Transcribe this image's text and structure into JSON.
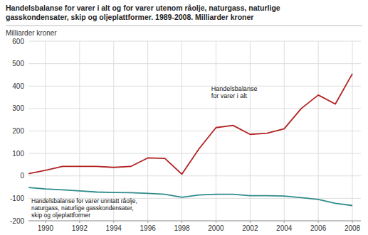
{
  "chart_data": {
    "type": "line",
    "title": "Handelsbalanse for varer i alt og for varer utenom råolje, naturgass, naturlige\ngasskondensater, skip og oljeplattformer. 1989-2008. Milliarder kroner",
    "ylabel": "Milliarder kroner",
    "x": [
      1989,
      1990,
      1991,
      1992,
      1993,
      1994,
      1995,
      1996,
      1997,
      1998,
      1999,
      2000,
      2001,
      2002,
      2003,
      2004,
      2005,
      2006,
      2007,
      2008
    ],
    "series": [
      {
        "name": "Handelsbalanse\nfor varer i alt",
        "color": "#b22222",
        "values": [
          10,
          25,
          42,
          42,
          42,
          38,
          42,
          80,
          78,
          8,
          120,
          215,
          225,
          185,
          190,
          210,
          300,
          360,
          320,
          455
        ]
      },
      {
        "name": "Handelsbalanse for varer unntatt råolje,\nnaturgass, naturlige gasskondensater,\nskip og oljeplattformer",
        "color": "#2e8b8b",
        "values": [
          -52,
          -58,
          -62,
          -67,
          -72,
          -74,
          -75,
          -78,
          -82,
          -95,
          -85,
          -82,
          -82,
          -88,
          -88,
          -90,
          -97,
          -105,
          -122,
          -132
        ]
      }
    ],
    "xlim": [
      1989,
      2008.5
    ],
    "xticks": [
      1990,
      1992,
      1994,
      1996,
      1998,
      2000,
      2002,
      2004,
      2006,
      2008
    ],
    "ylim": [
      -200,
      600
    ],
    "yticks": [
      -200,
      -100,
      0,
      100,
      200,
      300,
      400,
      500,
      600
    ],
    "grid": true
  }
}
